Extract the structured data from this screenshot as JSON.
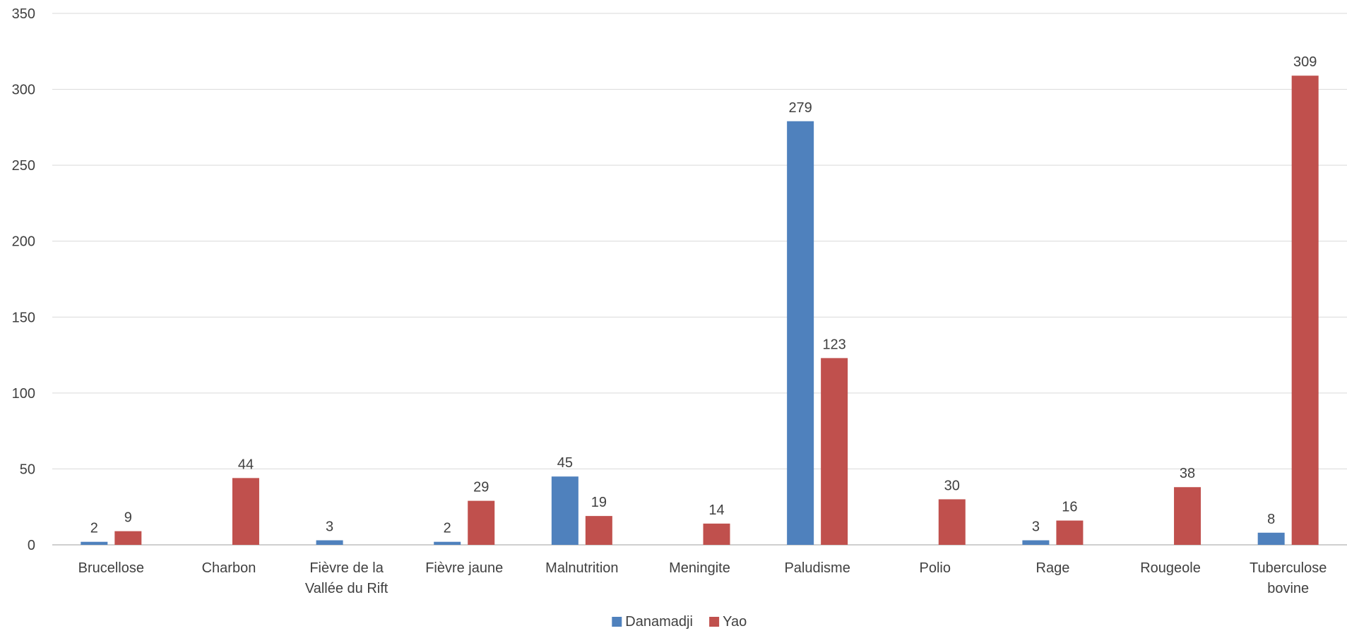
{
  "chart_data": {
    "type": "bar",
    "categories": [
      [
        "Brucellose"
      ],
      [
        "Charbon"
      ],
      [
        "Fièvre de la",
        "Vallée du Rift"
      ],
      [
        "Fièvre jaune"
      ],
      [
        "Malnutrition"
      ],
      [
        "Meningite"
      ],
      [
        "Paludisme"
      ],
      [
        "Polio"
      ],
      [
        "Rage"
      ],
      [
        "Rougeole"
      ],
      [
        "Tuberculose",
        "bovine"
      ]
    ],
    "series": [
      {
        "name": "Danamadji",
        "color": "#4f81bd",
        "values": [
          2,
          null,
          3,
          2,
          45,
          null,
          279,
          null,
          3,
          null,
          8
        ]
      },
      {
        "name": "Yao",
        "color": "#c0504d",
        "values": [
          9,
          44,
          null,
          29,
          19,
          14,
          123,
          30,
          16,
          38,
          309
        ]
      }
    ],
    "title": "",
    "xlabel": "",
    "ylabel": "",
    "ylim": [
      0,
      350
    ],
    "yticks": [
      0,
      50,
      100,
      150,
      200,
      250,
      300,
      350
    ],
    "grid": true,
    "data_labels": true,
    "legend_position": "bottom",
    "gridline_color": "#d9d9d9",
    "axis_line_color": "#bfbfbf"
  }
}
